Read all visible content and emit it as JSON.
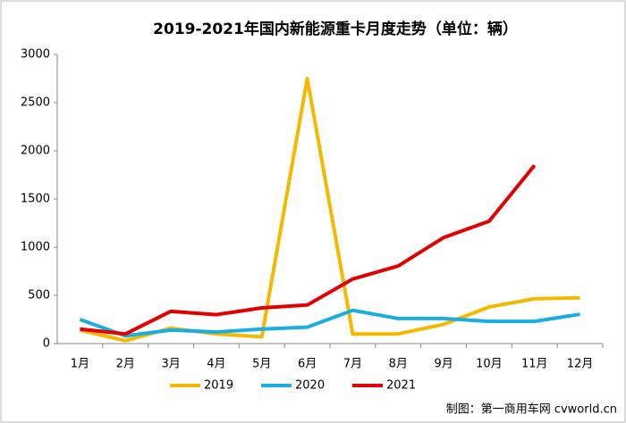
{
  "chart_data": {
    "type": "line",
    "title": "2019-2021年国内新能源重卡月度走势（单位：辆）",
    "categories": [
      "1月",
      "2月",
      "3月",
      "4月",
      "5月",
      "6月",
      "7月",
      "8月",
      "9月",
      "10月",
      "11月",
      "12月"
    ],
    "series": [
      {
        "name": "2019",
        "color": "#F5B800",
        "values": [
          140,
          30,
          160,
          100,
          70,
          2750,
          100,
          100,
          200,
          380,
          465,
          475
        ]
      },
      {
        "name": "2020",
        "color": "#1AAEE0",
        "values": [
          250,
          80,
          140,
          120,
          150,
          170,
          345,
          260,
          260,
          230,
          230,
          305
        ]
      },
      {
        "name": "2021",
        "color": "#E00000",
        "values": [
          150,
          100,
          335,
          300,
          370,
          400,
          670,
          805,
          1100,
          1270,
          1850,
          null
        ]
      }
    ],
    "ylim": [
      0,
      3000
    ],
    "yticks": [
      0,
      500,
      1000,
      1500,
      2000,
      2500,
      3000
    ],
    "source": "制图：第一商用车网 cvworld.cn"
  }
}
